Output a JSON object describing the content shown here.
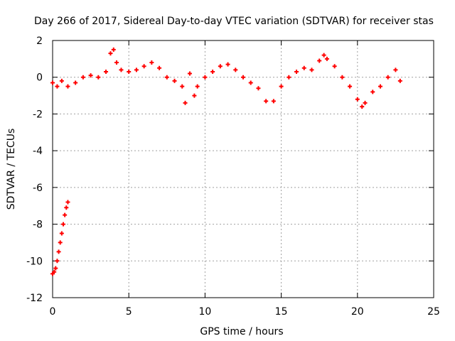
{
  "chart_data": {
    "type": "scatter",
    "title": "Day 266 of 2017, Sidereal Day-to-day VTEC variation (SDTVAR) for receiver stas",
    "xlabel": "GPS time / hours",
    "ylabel": "SDTVAR / TECUs",
    "xlim": [
      0,
      25
    ],
    "ylim": [
      -12,
      2
    ],
    "xticks": [
      0,
      5,
      10,
      15,
      20,
      25
    ],
    "yticks": [
      -12,
      -10,
      -8,
      -6,
      -4,
      -2,
      0,
      2
    ],
    "grid": true,
    "colors": {
      "series": "#ff0000",
      "grid": "#a0a0a0",
      "frame": "#000000"
    },
    "series": [
      {
        "name": "stas",
        "marker": "+",
        "points": [
          [
            0.0,
            -10.7
          ],
          [
            0.1,
            -10.6
          ],
          [
            0.2,
            -10.4
          ],
          [
            0.3,
            -10.0
          ],
          [
            0.4,
            -9.5
          ],
          [
            0.5,
            -9.0
          ],
          [
            0.6,
            -8.5
          ],
          [
            0.7,
            -8.0
          ],
          [
            0.8,
            -7.5
          ],
          [
            0.9,
            -7.1
          ],
          [
            1.0,
            -6.8
          ],
          [
            0.0,
            -0.3
          ],
          [
            0.3,
            -0.5
          ],
          [
            0.6,
            -0.2
          ],
          [
            1.0,
            -0.5
          ],
          [
            1.5,
            -0.3
          ],
          [
            2.0,
            0.0
          ],
          [
            2.5,
            0.1
          ],
          [
            3.0,
            0.0
          ],
          [
            3.5,
            0.3
          ],
          [
            3.8,
            1.3
          ],
          [
            4.0,
            1.5
          ],
          [
            4.2,
            0.8
          ],
          [
            4.5,
            0.4
          ],
          [
            5.0,
            0.3
          ],
          [
            5.5,
            0.4
          ],
          [
            6.0,
            0.6
          ],
          [
            6.5,
            0.8
          ],
          [
            7.0,
            0.5
          ],
          [
            7.5,
            0.0
          ],
          [
            8.0,
            -0.2
          ],
          [
            8.5,
            -0.5
          ],
          [
            8.7,
            -1.4
          ],
          [
            9.0,
            0.2
          ],
          [
            9.3,
            -1.0
          ],
          [
            9.5,
            -0.5
          ],
          [
            10.0,
            0.0
          ],
          [
            10.5,
            0.3
          ],
          [
            11.0,
            0.6
          ],
          [
            11.5,
            0.7
          ],
          [
            12.0,
            0.4
          ],
          [
            12.5,
            0.0
          ],
          [
            13.0,
            -0.3
          ],
          [
            13.5,
            -0.6
          ],
          [
            14.0,
            -1.3
          ],
          [
            14.5,
            -1.3
          ],
          [
            15.0,
            -0.5
          ],
          [
            15.5,
            0.0
          ],
          [
            16.0,
            0.3
          ],
          [
            16.5,
            0.5
          ],
          [
            17.0,
            0.4
          ],
          [
            17.5,
            0.9
          ],
          [
            17.8,
            1.2
          ],
          [
            18.0,
            1.0
          ],
          [
            18.5,
            0.6
          ],
          [
            19.0,
            0.0
          ],
          [
            19.5,
            -0.5
          ],
          [
            20.0,
            -1.2
          ],
          [
            20.3,
            -1.6
          ],
          [
            20.5,
            -1.4
          ],
          [
            21.0,
            -0.8
          ],
          [
            21.5,
            -0.5
          ],
          [
            22.0,
            0.0
          ],
          [
            22.5,
            0.4
          ],
          [
            22.8,
            -0.2
          ]
        ]
      }
    ]
  }
}
